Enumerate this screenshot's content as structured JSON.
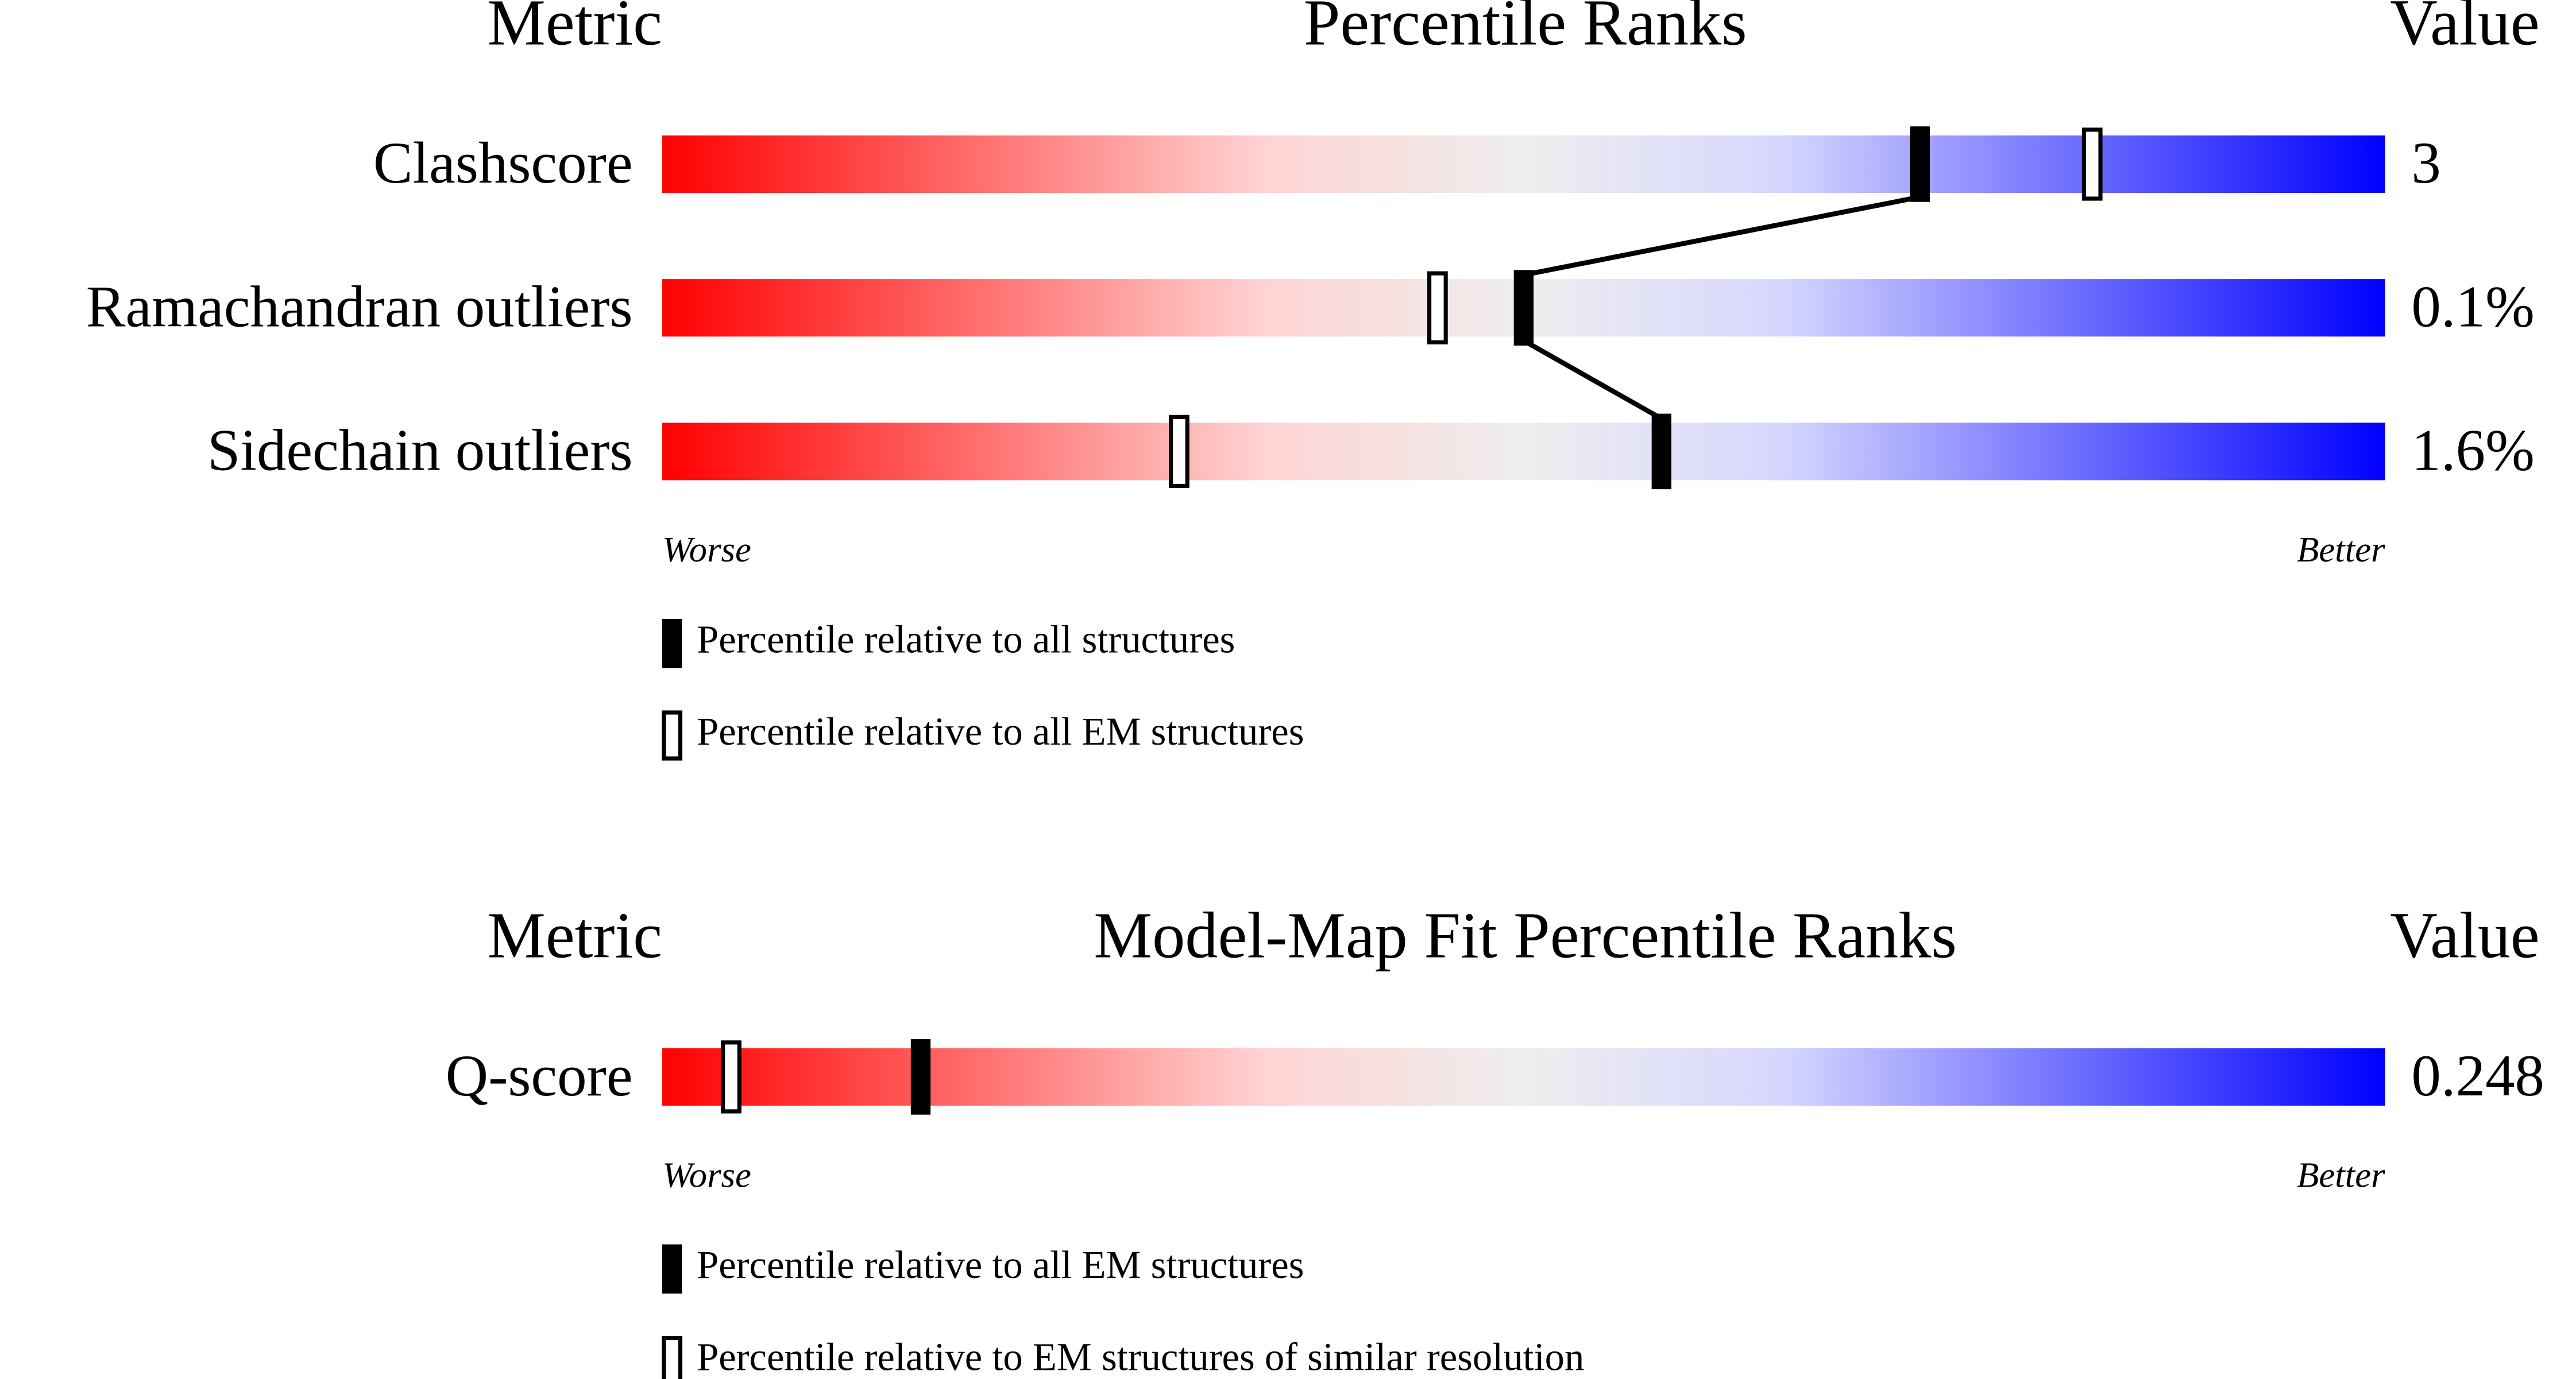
{
  "chart_data": [
    {
      "type": "percentile",
      "headers": {
        "metric": "Metric",
        "title": "Percentile Ranks",
        "value": "Value"
      },
      "categories": [
        "Clashscore",
        "Ramachandran outliers",
        "Sidechain outliers"
      ],
      "metric_values": [
        "3",
        "0.1%",
        "1.6%"
      ],
      "series": [
        {
          "name": "Percentile relative to all structures",
          "style": "filled",
          "color": "#000000",
          "values": [
            73,
            50,
            58
          ]
        },
        {
          "name": "Percentile relative to all EM structures",
          "style": "open",
          "color": "#000000",
          "values": [
            83,
            45,
            30
          ]
        }
      ],
      "xlim": [
        0,
        100
      ],
      "worse": "Worse",
      "better": "Better"
    },
    {
      "type": "percentile",
      "headers": {
        "metric": "Metric",
        "title": "Model-Map Fit Percentile Ranks",
        "value": "Value"
      },
      "categories": [
        "Q-score"
      ],
      "metric_values": [
        "0.248"
      ],
      "series": [
        {
          "name": "Percentile relative to all EM structures",
          "style": "filled",
          "color": "#000000",
          "values": [
            15
          ]
        },
        {
          "name": "Percentile relative to EM structures of similar resolution",
          "style": "open",
          "color": "#000000",
          "values": [
            4
          ]
        }
      ],
      "xlim": [
        0,
        100
      ],
      "worse": "Worse",
      "better": "Better"
    }
  ]
}
